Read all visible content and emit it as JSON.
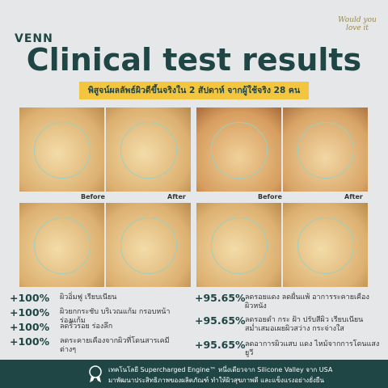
{
  "header": {
    "brand": "VENN",
    "badge": "Would you love it",
    "title": "Clinical test results",
    "subtitle": "พิสูจน์ผลลัพธ์ผิวดีขึ้นจริงใน 2 สัปดาห์ จากผู้ใช้จริง 28 คน"
  },
  "photos": {
    "labels": [
      "Before",
      "After",
      "Before",
      "After"
    ]
  },
  "results": {
    "left": [
      {
        "value": "+100%",
        "text": "ผิวอิ่มฟู เรียบเนียน"
      },
      {
        "value": "+100%",
        "text": "ผิวยกกระชับ บริเวณแก้ม กรอบหน้า ร่องแก้ม"
      },
      {
        "value": "+100%",
        "text": "ลดริ้วรอย ร่องลึก"
      },
      {
        "value": "+100%",
        "text": "ลดระคายเคืองจากผิวที่โดนสารเคมีต่างๆ"
      }
    ],
    "right": [
      {
        "value": "+95.65%",
        "text": "ลดรอยแดง ลดผื่นแพ้ อาการระคายเคืองผิวหนัง"
      },
      {
        "value": "+95.65%",
        "text": "ลดรอยดำ กระ ฝ้า ปรับสีผิว เรียบเนียน สม่ำเสมอเผยผิวสว่าง กระจ่างใส"
      },
      {
        "value": "+95.65%",
        "text": "ลดอาการผิวแสบ แดง ไหม้จากการโดนแสงยูวี"
      }
    ]
  },
  "footer": {
    "lines": [
      "เทคโนโลยี Supercharged Engine™ หนึ่งเดียวจาก Silicone Valley จาก USA",
      "มาพัฒนาประสิทธิภาพของผลิตภัณฑ์ ทำให้ผิวสุขภาพดี และแข็งแรงอย่างยั่งยืน"
    ]
  }
}
